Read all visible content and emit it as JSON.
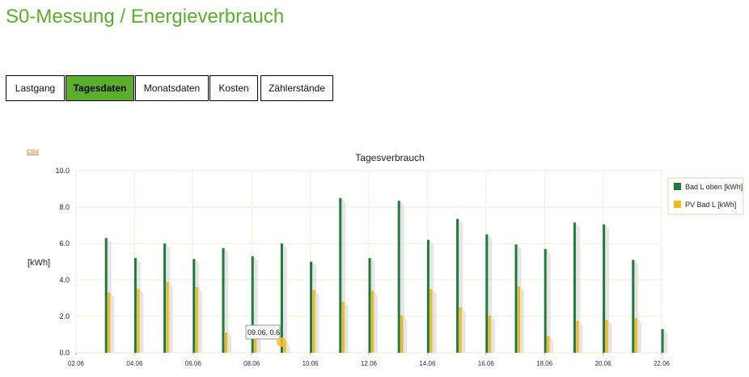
{
  "page": {
    "title": "S0-Messung / Energieverbrauch"
  },
  "tabs": [
    {
      "label": "Lastgang",
      "active": false
    },
    {
      "label": "Tagesdaten",
      "active": true
    },
    {
      "label": "Monatsdaten",
      "active": false
    },
    {
      "label": "Kosten",
      "active": false
    },
    {
      "label": "Zählerstände",
      "active": false
    }
  ],
  "csv_link": "csv",
  "tooltip": {
    "text": "09.06, 0.6"
  },
  "colors": {
    "accent": "#5aae2b",
    "series_green": "#1f7a3c",
    "series_yellow": "#f2b81b",
    "grid": "#e6f2d9",
    "link": "#e87b1e"
  },
  "chart_data": {
    "type": "bar",
    "title": "Tagesverbrauch",
    "ylabel": "[kWh]",
    "xlabel": "",
    "ylim": [
      0,
      10
    ],
    "y_ticks": [
      "0.0",
      "2.0",
      "4.0",
      "6.0",
      "8.0",
      "10.0"
    ],
    "x_tick_labels": [
      "02.06",
      "04.06",
      "06.06",
      "08.06",
      "10.06",
      "12.06",
      "14.06",
      "16.06",
      "18.06",
      "20.06",
      "22.06"
    ],
    "categories": [
      "02.06",
      "03.06",
      "04.06",
      "05.06",
      "06.06",
      "07.06",
      "08.06",
      "09.06",
      "10.06",
      "11.06",
      "12.06",
      "13.06",
      "14.06",
      "15.06",
      "16.06",
      "17.06",
      "18.06",
      "19.06",
      "20.06",
      "21.06",
      "22.06"
    ],
    "series": [
      {
        "name": "Bad L oben [kWh]",
        "color": "#1f7a3c",
        "values": [
          null,
          6.3,
          5.2,
          6.0,
          5.15,
          5.75,
          5.3,
          6.0,
          5.0,
          8.5,
          5.2,
          8.35,
          6.2,
          7.35,
          6.5,
          5.95,
          5.7,
          7.15,
          7.05,
          5.1,
          1.3
        ]
      },
      {
        "name": "PV Bad L [kWh]",
        "color": "#f2b81b",
        "values": [
          null,
          3.3,
          3.5,
          3.9,
          3.6,
          1.1,
          1.5,
          0.6,
          3.45,
          2.8,
          3.4,
          2.05,
          3.5,
          2.5,
          2.05,
          3.65,
          0.9,
          1.75,
          1.8,
          1.9,
          null
        ]
      }
    ],
    "legend_position": "right",
    "grid": true
  }
}
